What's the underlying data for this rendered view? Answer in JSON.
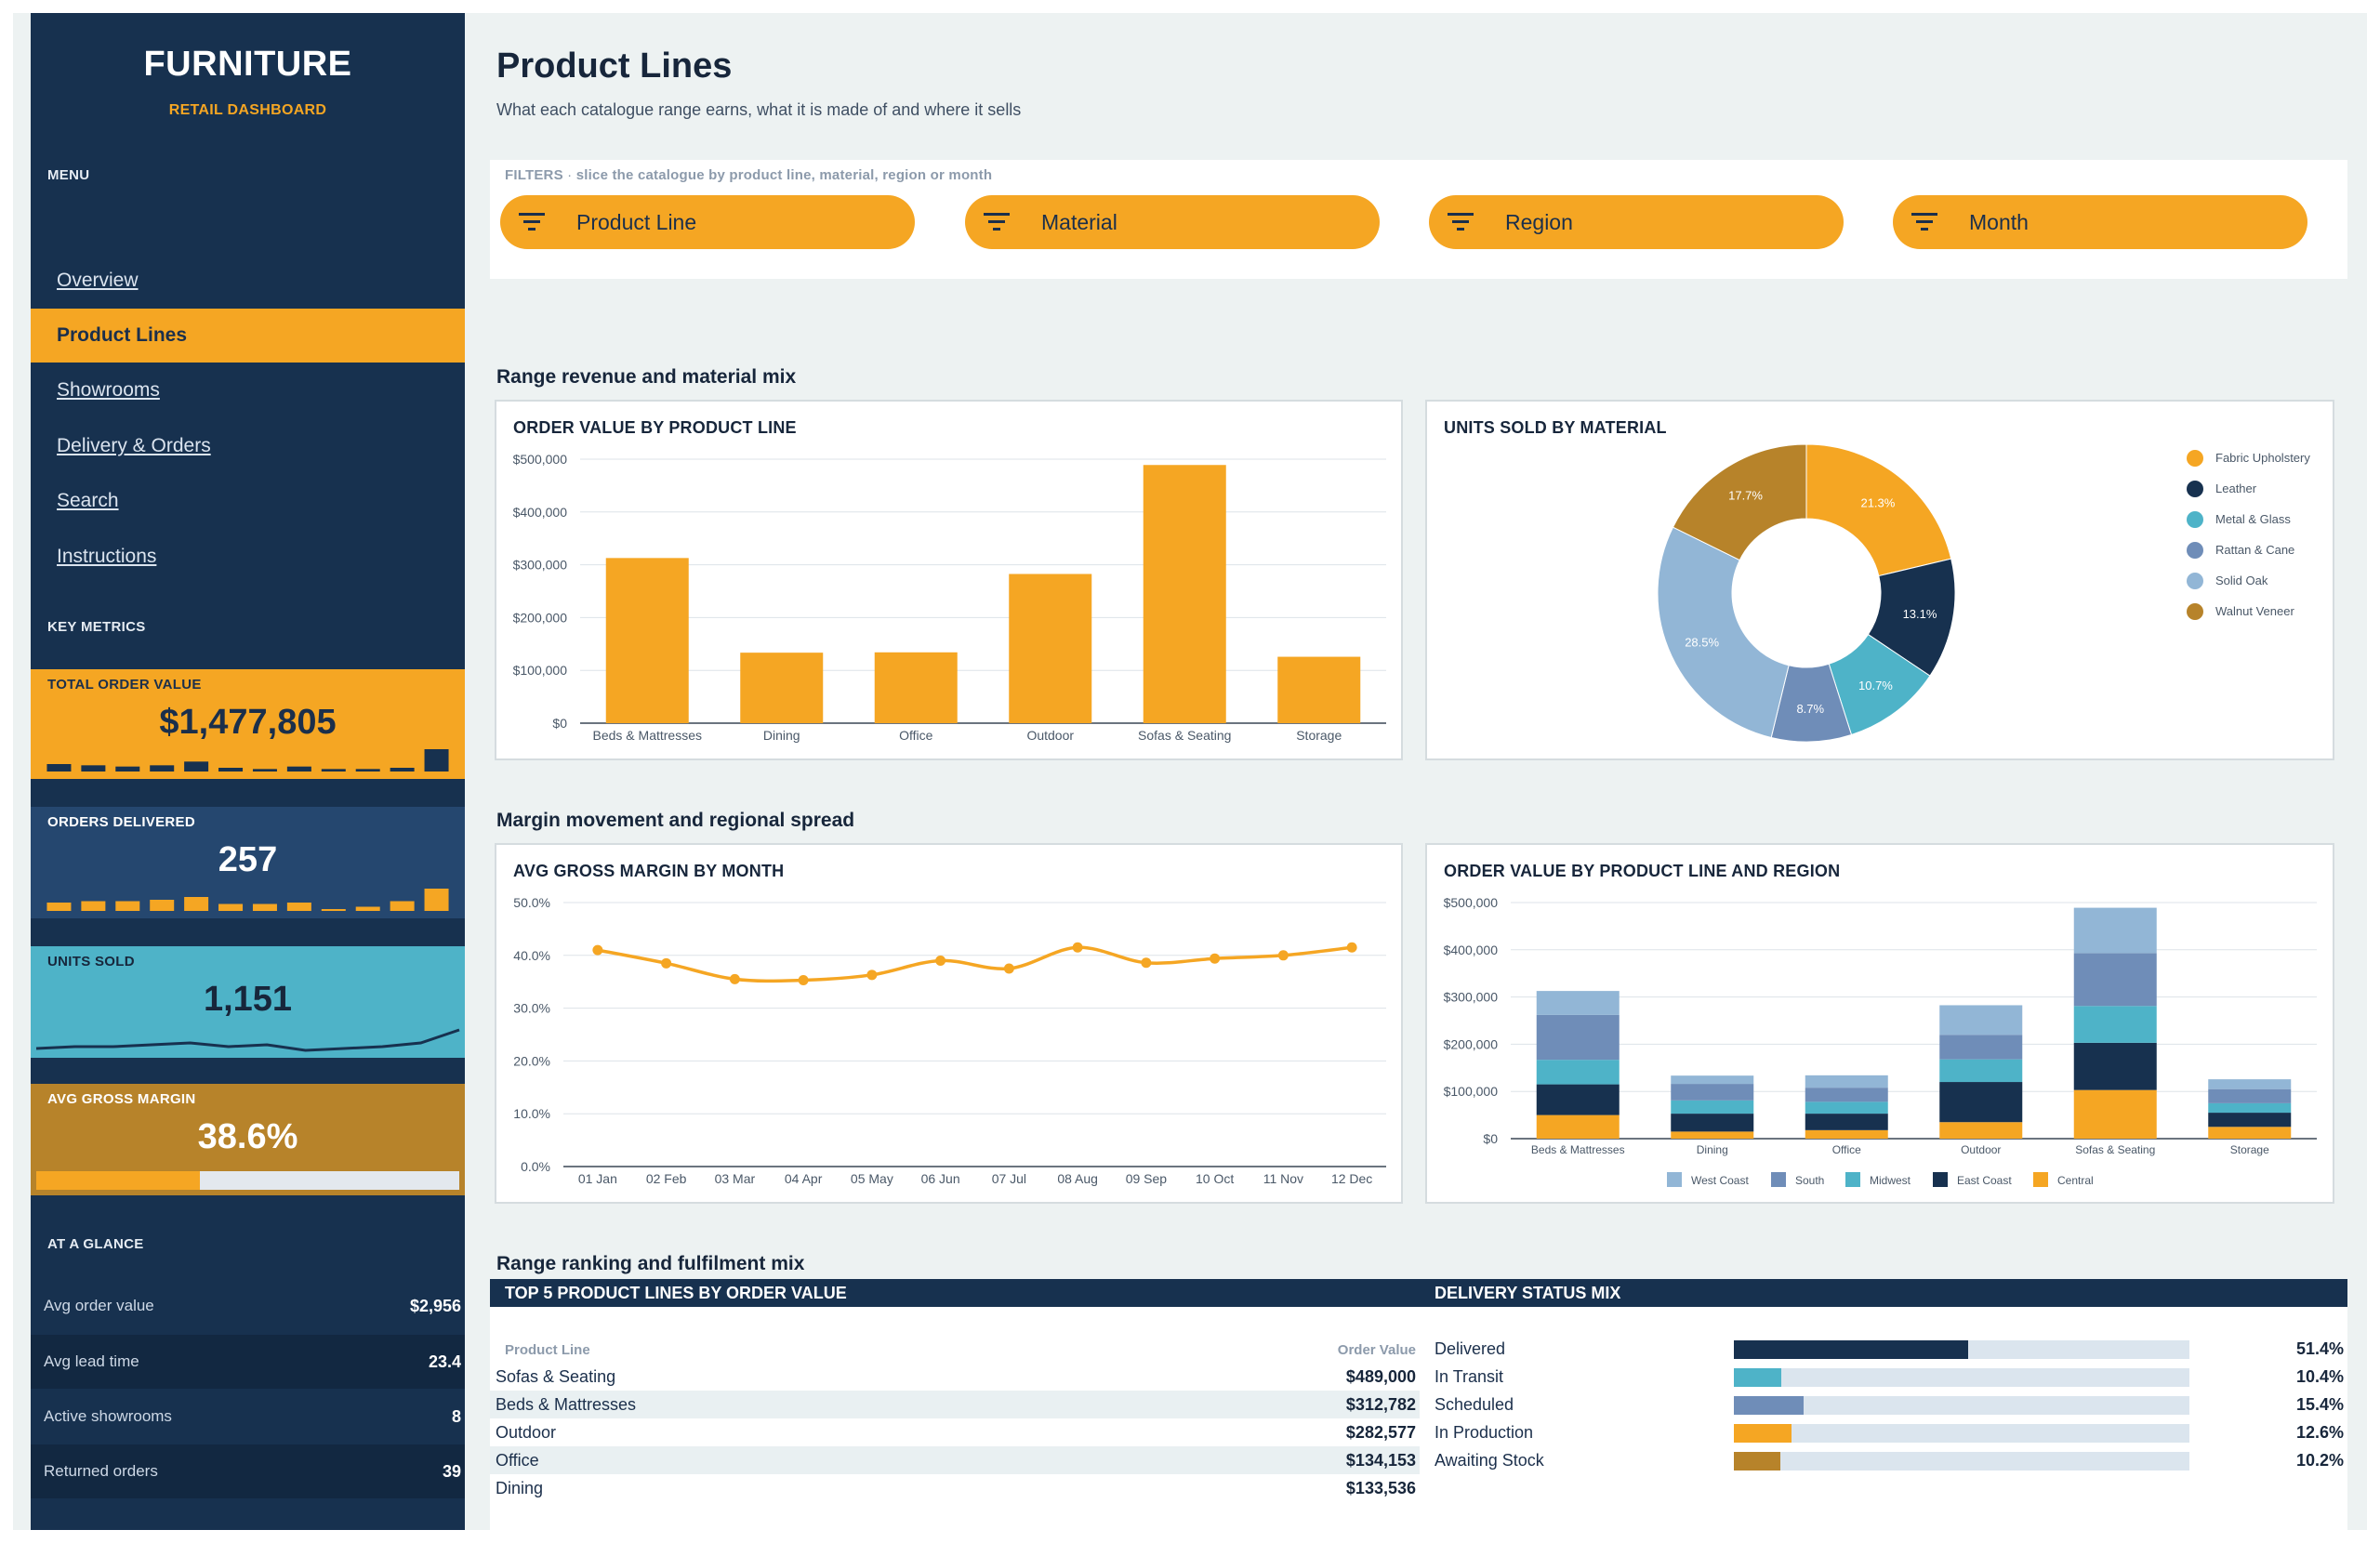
{
  "sidebar": {
    "brand": "FURNITURE",
    "brand_sub": "RETAIL DASHBOARD",
    "menu_label": "MENU",
    "nav": [
      {
        "label": "Overview",
        "active": false
      },
      {
        "label": "Product Lines",
        "active": true
      },
      {
        "label": "Showrooms",
        "active": false
      },
      {
        "label": "Delivery & Orders",
        "active": false
      },
      {
        "label": "Search",
        "active": false
      },
      {
        "label": "Instructions",
        "active": false
      }
    ],
    "metrics_label": "KEY METRICS",
    "kpis": {
      "total_order_value": {
        "label": "TOTAL ORDER VALUE",
        "value": "$1,477,805",
        "spark": [
          6,
          5,
          4,
          5,
          8,
          3,
          2,
          4,
          2,
          2,
          3,
          18
        ]
      },
      "orders_delivered": {
        "label": "ORDERS DELIVERED",
        "value": "257",
        "spark": [
          6,
          7,
          7,
          8,
          10,
          5,
          5,
          6,
          1,
          3,
          7,
          16
        ]
      },
      "units_sold": {
        "label": "UNITS SOLD",
        "value": "1,151",
        "spark": [
          4,
          5,
          5,
          6,
          7,
          5,
          6,
          3,
          4,
          5,
          7,
          14
        ]
      },
      "avg_gross_margin": {
        "label": "AVG GROSS MARGIN",
        "value": "38.6%",
        "fraction": 0.386
      }
    },
    "glance_label": "AT A GLANCE",
    "glance": [
      {
        "label": "Avg order value",
        "value": "$2,956"
      },
      {
        "label": "Avg lead time",
        "value": "23.4"
      },
      {
        "label": "Active showrooms",
        "value": "8"
      },
      {
        "label": "Returned orders",
        "value": "39"
      }
    ]
  },
  "header": {
    "title": "Product Lines",
    "subtitle": "What each catalogue range earns, what it is made of and where it sells"
  },
  "filters": {
    "caption": "FILTERS",
    "hint": "slice the catalogue by product line, material, region or month",
    "items": [
      "Product Line",
      "Material",
      "Region",
      "Month"
    ]
  },
  "sections": {
    "s1": "Range revenue and material mix",
    "s2": "Margin movement and regional spread",
    "s3": "Range ranking and fulfilment mix"
  },
  "colors": {
    "navy": "#17314f",
    "orange": "#f5a623",
    "teal": "#4eb3c8",
    "steel": "#6f8db8",
    "light_blue": "#92b6d6",
    "bronze": "#b7832a"
  },
  "chart_data": [
    {
      "id": "order_value_by_product_line",
      "type": "bar",
      "title": "ORDER VALUE BY PRODUCT LINE",
      "categories": [
        "Beds & Mattresses",
        "Dining",
        "Office",
        "Outdoor",
        "Sofas & Seating",
        "Storage"
      ],
      "values": [
        312782,
        133536,
        134153,
        282577,
        489000,
        125757
      ],
      "ylim": [
        0,
        500000
      ],
      "yticks": [
        "$0",
        "$100,000",
        "$200,000",
        "$300,000",
        "$400,000",
        "$500,000"
      ],
      "color": "#f5a623",
      "grid": true
    },
    {
      "id": "units_sold_by_material",
      "type": "pie",
      "donut": true,
      "title": "UNITS SOLD BY MATERIAL",
      "labels": [
        "Fabric Upholstery",
        "Leather",
        "Metal & Glass",
        "Rattan & Cane",
        "Solid Oak",
        "Walnut Veneer"
      ],
      "values": [
        21.3,
        13.1,
        10.7,
        8.7,
        28.5,
        17.7
      ],
      "value_labels": [
        "21.3%",
        "13.1%",
        "10.7%",
        "8.7%",
        "28.5%",
        "17.7%"
      ],
      "colors": [
        "#f5a623",
        "#17314f",
        "#4eb3c8",
        "#6f8db8",
        "#92b6d6",
        "#b7832a"
      ],
      "legend": "right"
    },
    {
      "id": "avg_gross_margin_by_month",
      "type": "line",
      "title": "AVG GROSS MARGIN BY MONTH",
      "x": [
        "01 Jan",
        "02 Feb",
        "03 Mar",
        "04 Apr",
        "05 May",
        "06 Jun",
        "07 Jul",
        "08 Aug",
        "09 Sep",
        "10 Oct",
        "11 Nov",
        "12 Dec"
      ],
      "values": [
        41.0,
        38.5,
        35.5,
        35.3,
        36.3,
        39.0,
        37.5,
        41.5,
        38.6,
        39.4,
        40.0,
        41.5
      ],
      "ylim": [
        0,
        50
      ],
      "yticks": [
        "0.0%",
        "10.0%",
        "20.0%",
        "30.0%",
        "40.0%",
        "50.0%"
      ],
      "color": "#f5a623",
      "grid": true
    },
    {
      "id": "order_value_by_line_and_region",
      "type": "bar",
      "stacked": true,
      "title": "ORDER VALUE BY PRODUCT LINE AND REGION",
      "categories": [
        "Beds & Mattresses",
        "Dining",
        "Office",
        "Outdoor",
        "Sofas & Seating",
        "Storage"
      ],
      "series": [
        {
          "name": "Central",
          "values": [
            50000,
            15000,
            18000,
            35000,
            103000,
            25000
          ],
          "color": "#f5a623"
        },
        {
          "name": "East Coast",
          "values": [
            65000,
            38000,
            35000,
            85000,
            100000,
            30000
          ],
          "color": "#17314f"
        },
        {
          "name": "Midwest",
          "values": [
            52000,
            28000,
            25000,
            48000,
            78000,
            20000
          ],
          "color": "#4eb3c8"
        },
        {
          "name": "South",
          "values": [
            95000,
            35000,
            30000,
            52000,
            112000,
            30000
          ],
          "color": "#6f8db8"
        },
        {
          "name": "West Coast",
          "values": [
            50782,
            17536,
            26153,
            62577,
            96000,
            20757
          ],
          "color": "#92b6d6"
        }
      ],
      "legend_order": [
        "West Coast",
        "South",
        "Midwest",
        "East Coast",
        "Central"
      ],
      "ylim": [
        0,
        500000
      ],
      "yticks": [
        "$0",
        "$100,000",
        "$200,000",
        "$300,000",
        "$400,000",
        "$500,000"
      ],
      "legend": "bottom",
      "grid": true
    }
  ],
  "top5": {
    "title": "TOP 5 PRODUCT LINES BY ORDER VALUE",
    "col_name": "Product Line",
    "col_value": "Order Value",
    "rows": [
      {
        "name": "Sofas & Seating",
        "value": "$489,000"
      },
      {
        "name": "Beds & Mattresses",
        "value": "$312,782"
      },
      {
        "name": "Outdoor",
        "value": "$282,577"
      },
      {
        "name": "Office",
        "value": "$134,153"
      },
      {
        "name": "Dining",
        "value": "$133,536"
      }
    ]
  },
  "delivery": {
    "title": "DELIVERY STATUS MIX",
    "rows": [
      {
        "name": "Delivered",
        "pct": "51.4%",
        "fraction": 0.514,
        "color": "#17314f"
      },
      {
        "name": "In Transit",
        "pct": "10.4%",
        "fraction": 0.104,
        "color": "#4eb3c8"
      },
      {
        "name": "Scheduled",
        "pct": "15.4%",
        "fraction": 0.154,
        "color": "#6f8db8"
      },
      {
        "name": "In Production",
        "pct": "12.6%",
        "fraction": 0.126,
        "color": "#f5a623"
      },
      {
        "name": "Awaiting Stock",
        "pct": "10.2%",
        "fraction": 0.102,
        "color": "#b7832a"
      }
    ]
  }
}
